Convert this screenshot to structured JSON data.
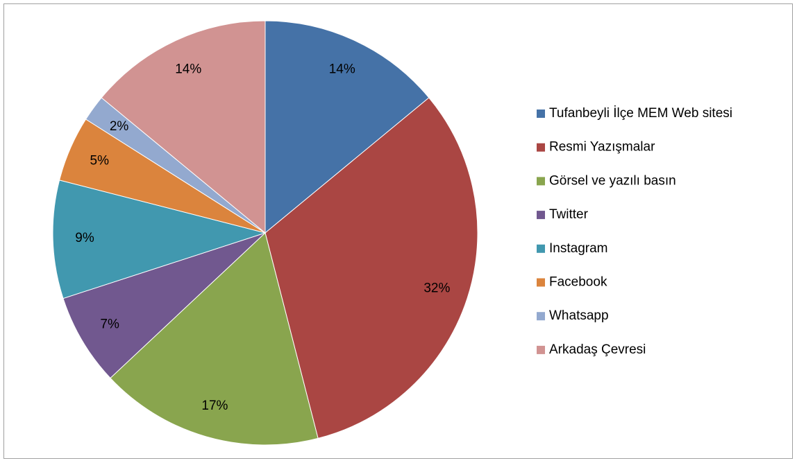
{
  "chart_data": {
    "type": "pie",
    "categories": [
      "Tufanbeyli İlçe MEM Web sitesi",
      "Resmi Yazışmalar",
      "Görsel ve yazılı basın",
      "Twitter",
      "Instagram",
      "Facebook",
      "Whatsapp",
      "Arkadaş Çevresi"
    ],
    "values": [
      14,
      32,
      17,
      7,
      9,
      5,
      2,
      14
    ],
    "value_labels": [
      "14%",
      "32%",
      "17%",
      "7%",
      "9%",
      "5%",
      "2%",
      "14%"
    ],
    "colors": [
      "#4572a7",
      "#aa4643",
      "#89a54e",
      "#71588f",
      "#4198af",
      "#db843d",
      "#93a9cf",
      "#d19392"
    ],
    "legend": "right"
  }
}
